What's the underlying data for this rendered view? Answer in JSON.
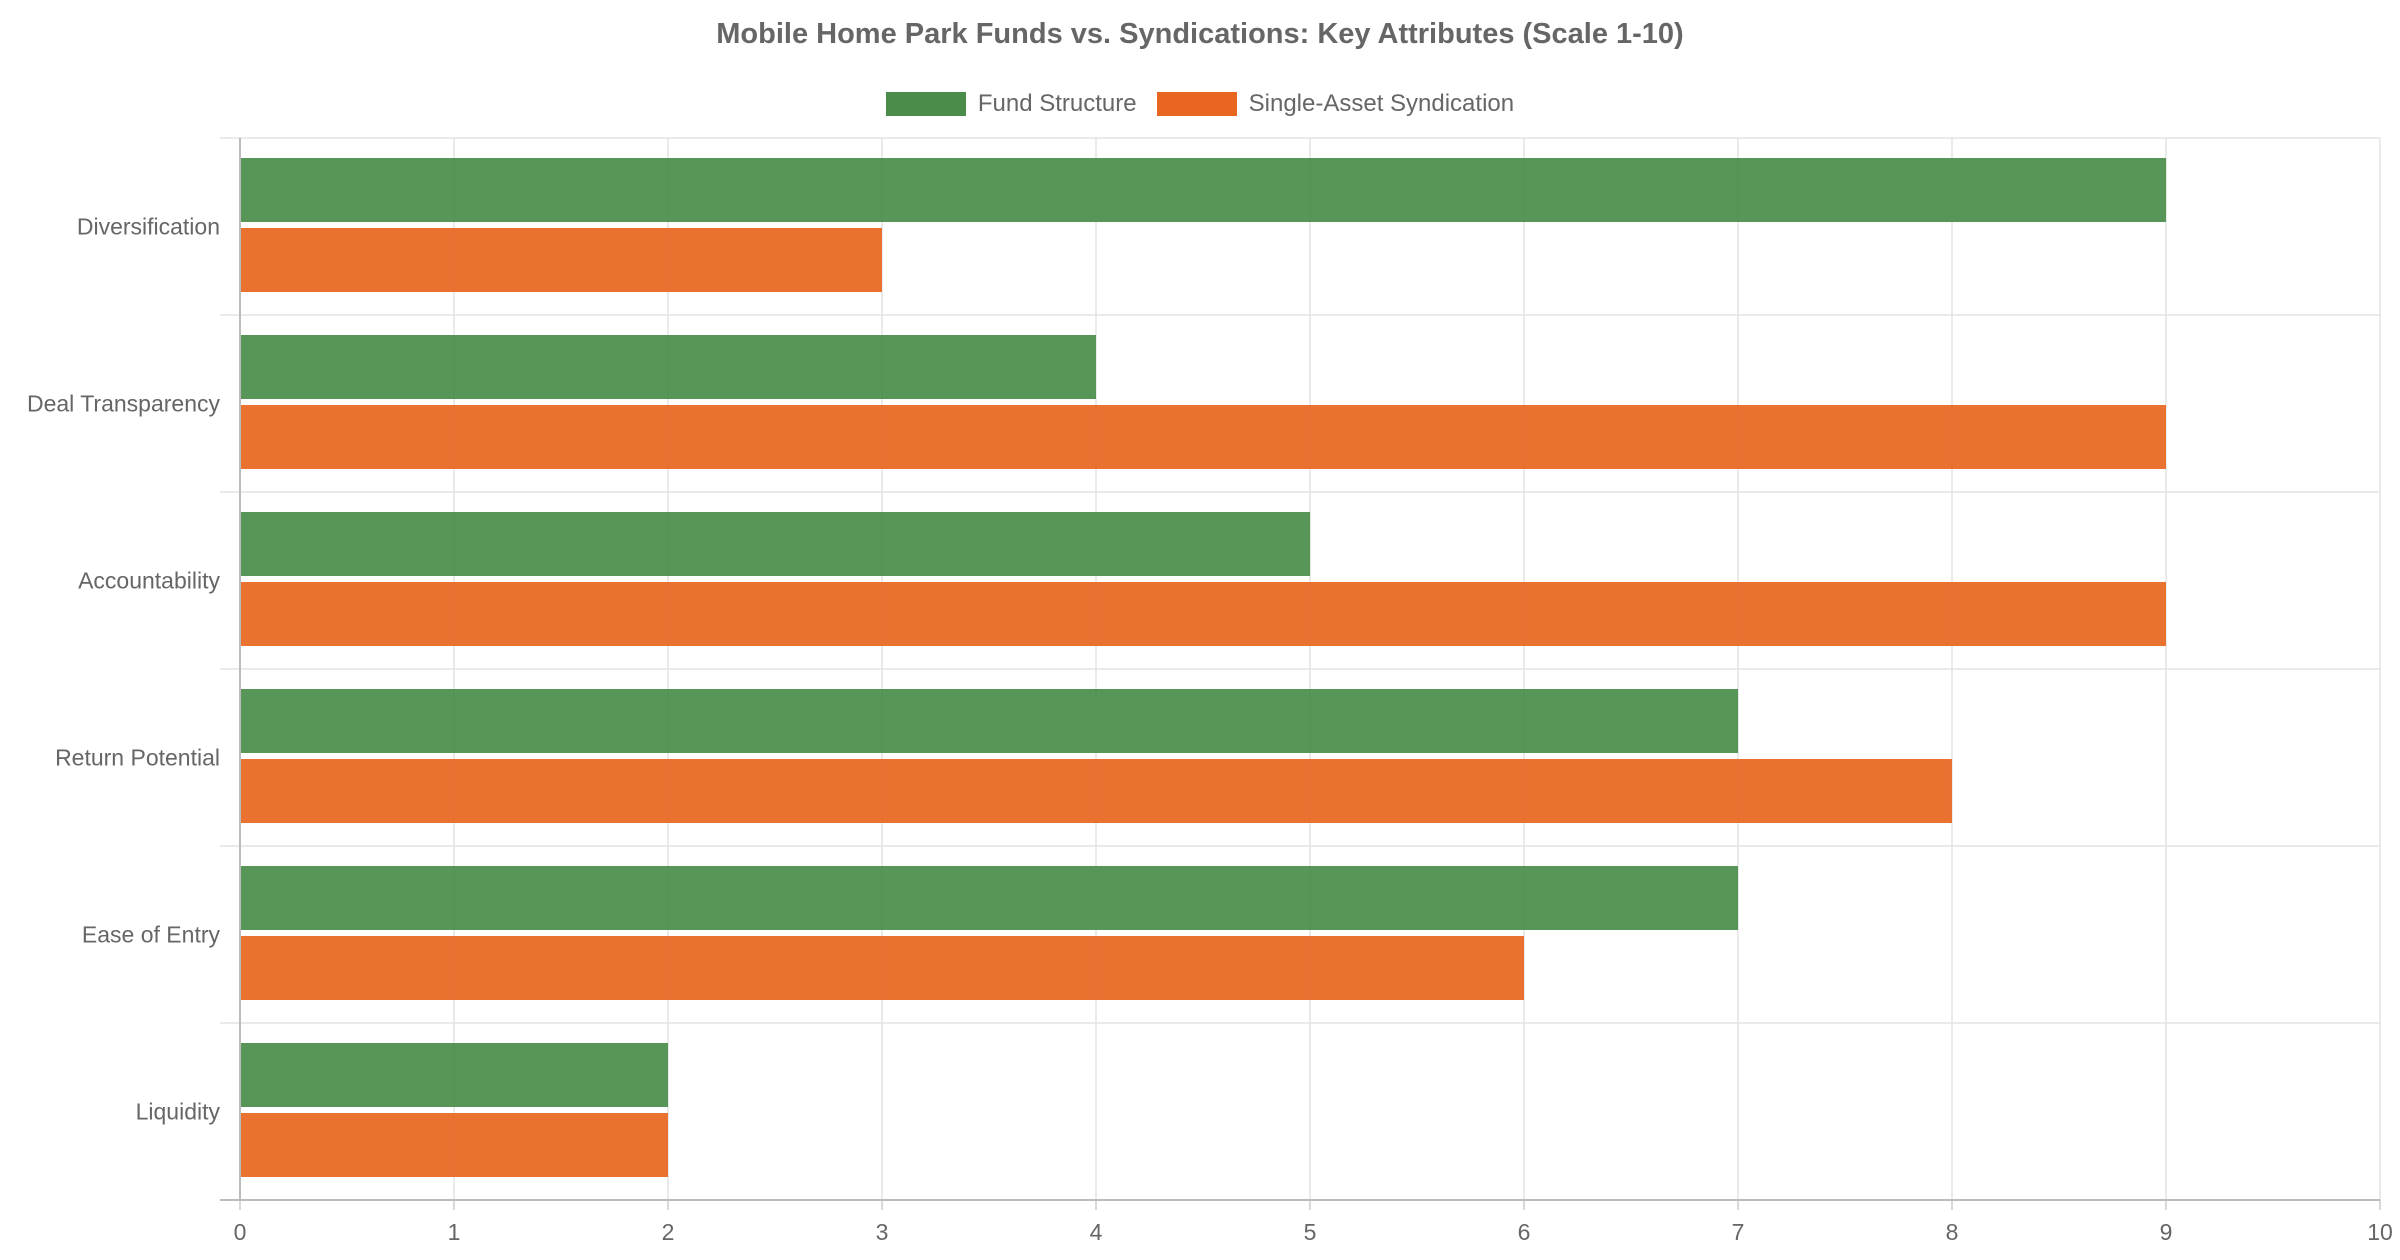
{
  "chart_data": {
    "type": "bar",
    "orientation": "horizontal",
    "title": "Mobile Home Park Funds vs. Syndications: Key Attributes (Scale 1-10)",
    "categories": [
      "Diversification",
      "Deal Transparency",
      "Accountability",
      "Return Potential",
      "Ease of Entry",
      "Liquidity"
    ],
    "series": [
      {
        "name": "Fund Structure",
        "color": "#4a8c4a",
        "values": [
          9,
          4,
          5,
          7,
          7,
          2
        ]
      },
      {
        "name": "Single-Asset Syndication",
        "color": "#e8661f",
        "values": [
          3,
          9,
          9,
          8,
          6,
          2
        ]
      }
    ],
    "xlim": [
      0,
      10
    ],
    "xticks": [
      0,
      1,
      2,
      3,
      4,
      5,
      6,
      7,
      8,
      9,
      10
    ],
    "grid": true,
    "legend_position": "top-center"
  }
}
